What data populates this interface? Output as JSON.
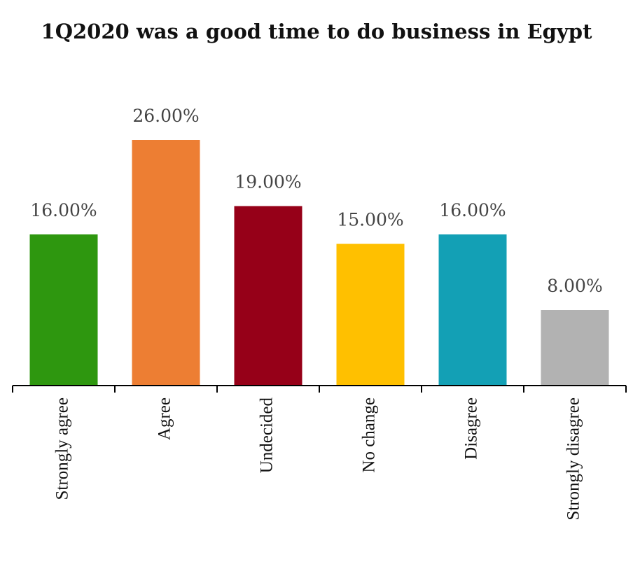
{
  "chart_data": {
    "type": "bar",
    "title": "1Q2020 was a good time to do business in Egypt",
    "xlabel": "",
    "ylabel": "",
    "categories": [
      "Strongly agree",
      "Agree",
      "Undecided",
      "No change",
      "Disagree",
      "Strongly disagree"
    ],
    "values": [
      16.0,
      26.0,
      19.0,
      15.0,
      16.0,
      8.0
    ],
    "data_labels": [
      "16.00%",
      "26.00%",
      "19.00%",
      "15.00%",
      "16.00%",
      "8.00%"
    ],
    "colors": [
      "#2e970f",
      "#ed7e33",
      "#960018",
      "#ffc000",
      "#13a0b5",
      "#b2b2b2"
    ],
    "ylim": [
      0,
      30
    ],
    "grid": false,
    "legend": "none"
  }
}
